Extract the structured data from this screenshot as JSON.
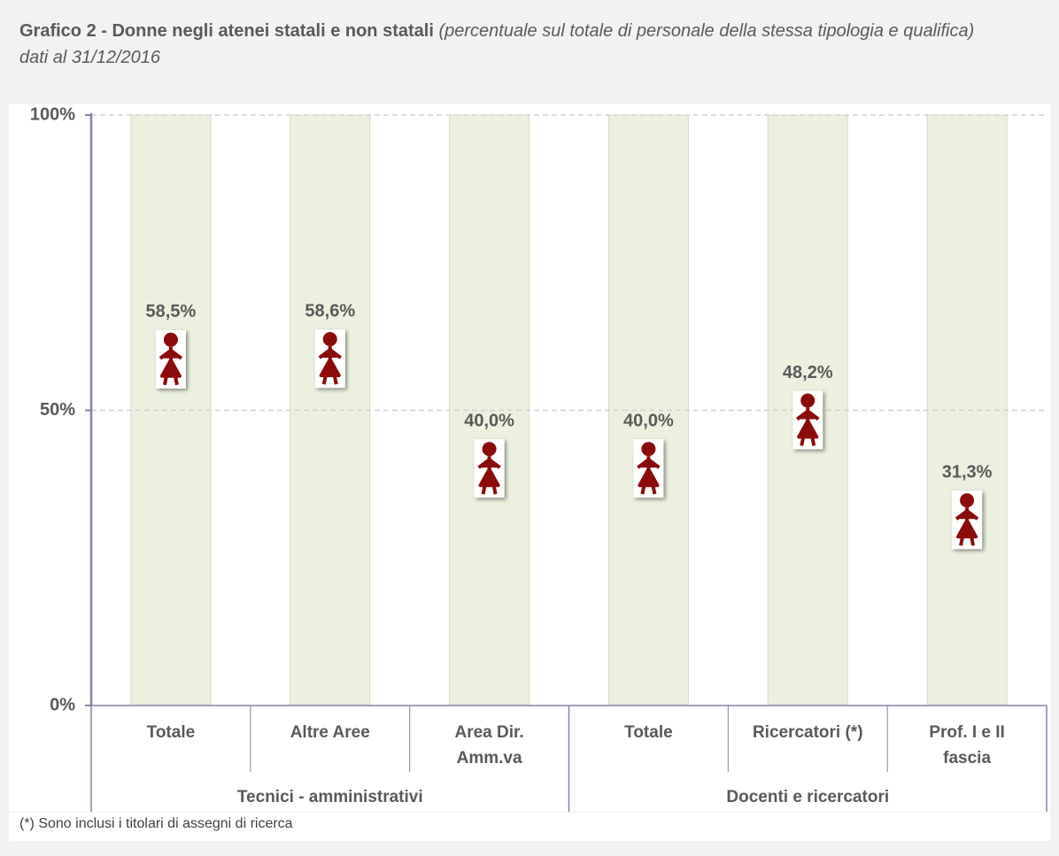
{
  "chart_data": {
    "type": "pictogram",
    "title": "Grafico 2 - Donne negli atenei statali e non statali",
    "title_note": "(percentuale sul totale di personale della stessa tipologia e qualifica)",
    "subtitle": "dati al 31/12/2016",
    "categories": [
      "Totale",
      "Altre Aree",
      "Area Dir. Amm.va",
      "Totale",
      "Ricercatori (*)",
      "Prof. I e II fascia"
    ],
    "groups": [
      {
        "name": "Tecnici - amministrativi",
        "size": 3
      },
      {
        "name": "Docenti e ricercatori",
        "size": 3
      }
    ],
    "values": [
      58.5,
      58.6,
      40.0,
      40.0,
      48.2,
      31.3
    ],
    "value_labels": [
      "58,5%",
      "58,6%",
      "40,0%",
      "40,0%",
      "48,2%",
      "31,3%"
    ],
    "color": "#8b0a0a",
    "ylim": [
      0,
      100
    ],
    "yticks": [
      {
        "value": 0,
        "label": "0%"
      },
      {
        "value": 50,
        "label": "50%"
      },
      {
        "value": 100,
        "label": "100%"
      }
    ],
    "grid": true,
    "footnote": "(*) Sono inclusi i titolari di assegni di ricerca"
  }
}
